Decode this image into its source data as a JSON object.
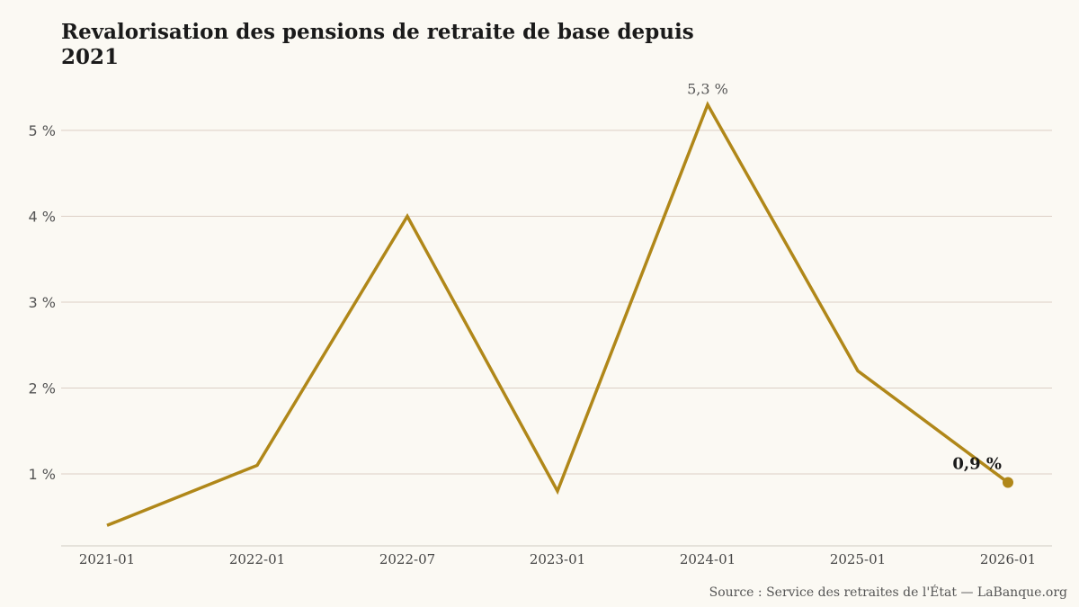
{
  "title": "Revalorisation des pensions de retraite de base depuis 2021",
  "source": "Source : Service des retraites de l'État — LaBanque.org",
  "chart_data": {
    "type": "line",
    "title": "Revalorisation des pensions de retraite de base depuis 2021",
    "xlabel": "",
    "ylabel": "",
    "categories": [
      "2021-01",
      "2022-01",
      "2022-07",
      "2023-01",
      "2024-01",
      "2025-01",
      "2026-01"
    ],
    "series": [
      {
        "values": [
          0.4,
          1.1,
          4.0,
          0.8,
          5.3,
          2.2,
          0.9
        ],
        "color": "#b08719"
      }
    ],
    "ylim": [
      0,
      5.5
    ],
    "yticks": [
      {
        "value": 1,
        "label": "1 %"
      },
      {
        "value": 2,
        "label": "2 %"
      },
      {
        "value": 3,
        "label": "3 %"
      },
      {
        "value": 4,
        "label": "4 %"
      },
      {
        "value": 5,
        "label": "5 %"
      }
    ],
    "annotations": [
      {
        "index": 4,
        "label": "5,3 %",
        "style": "peak"
      },
      {
        "index": 6,
        "label": "0,9 %",
        "style": "end"
      }
    ],
    "grid": "horizontal",
    "legend": "none",
    "gridColor": "#dccfc6",
    "axisColor": "#cfcac2"
  }
}
